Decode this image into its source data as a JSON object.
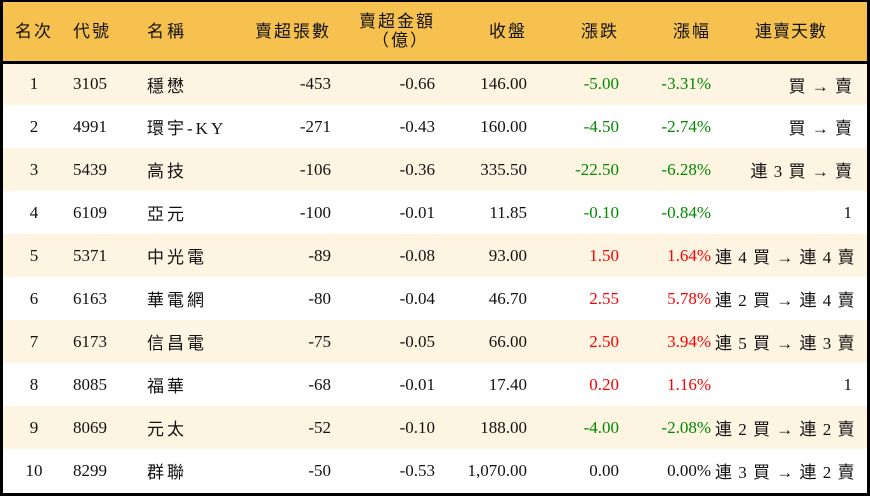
{
  "table": {
    "headers": {
      "rank": "名次",
      "code": "代號",
      "name": "名稱",
      "net_sell_volume": "賣超張數",
      "net_sell_amount_line1": "賣超金額",
      "net_sell_amount_line2": "（億）",
      "close": "收盤",
      "change": "漲跌",
      "change_pct": "漲幅",
      "consecutive_days": "連賣天數"
    },
    "colors": {
      "header_bg": "#F7C150",
      "row_alt_bg": "#FDF4E2",
      "row_bg": "#FFFFFF",
      "up": "#FF0000",
      "down": "#008A00",
      "border": "#000000"
    },
    "rows": [
      {
        "rank": "1",
        "code": "3105",
        "name": "穩懋",
        "volume": "-453",
        "amount": "-0.66",
        "close": "146.00",
        "change": "-5.00",
        "pct": "-3.31%",
        "trend": "down",
        "days": "買 → 賣"
      },
      {
        "rank": "2",
        "code": "4991",
        "name": "環宇-KY",
        "volume": "-271",
        "amount": "-0.43",
        "close": "160.00",
        "change": "-4.50",
        "pct": "-2.74%",
        "trend": "down",
        "days": "買 → 賣"
      },
      {
        "rank": "3",
        "code": "5439",
        "name": "高技",
        "volume": "-106",
        "amount": "-0.36",
        "close": "335.50",
        "change": "-22.50",
        "pct": "-6.28%",
        "trend": "down",
        "days": "連 3 買 → 賣"
      },
      {
        "rank": "4",
        "code": "6109",
        "name": "亞元",
        "volume": "-100",
        "amount": "-0.01",
        "close": "11.85",
        "change": "-0.10",
        "pct": "-0.84%",
        "trend": "down",
        "days": "1"
      },
      {
        "rank": "5",
        "code": "5371",
        "name": "中光電",
        "volume": "-89",
        "amount": "-0.08",
        "close": "93.00",
        "change": "1.50",
        "pct": "1.64%",
        "trend": "up",
        "days": "連 4 買 → 連 4 賣"
      },
      {
        "rank": "6",
        "code": "6163",
        "name": "華電網",
        "volume": "-80",
        "amount": "-0.04",
        "close": "46.70",
        "change": "2.55",
        "pct": "5.78%",
        "trend": "up",
        "days": "連 2 買 → 連 4 賣"
      },
      {
        "rank": "7",
        "code": "6173",
        "name": "信昌電",
        "volume": "-75",
        "amount": "-0.05",
        "close": "66.00",
        "change": "2.50",
        "pct": "3.94%",
        "trend": "up",
        "days": "連 5 買 → 連 3 賣"
      },
      {
        "rank": "8",
        "code": "8085",
        "name": "福華",
        "volume": "-68",
        "amount": "-0.01",
        "close": "17.40",
        "change": "0.20",
        "pct": "1.16%",
        "trend": "up",
        "days": "1"
      },
      {
        "rank": "9",
        "code": "8069",
        "name": "元太",
        "volume": "-52",
        "amount": "-0.10",
        "close": "188.00",
        "change": "-4.00",
        "pct": "-2.08%",
        "trend": "down",
        "days": "連 2 買 → 連 2 賣"
      },
      {
        "rank": "10",
        "code": "8299",
        "name": "群聯",
        "volume": "-50",
        "amount": "-0.53",
        "close": "1,070.00",
        "change": "0.00",
        "pct": "0.00%",
        "trend": "flat",
        "days": "連 3 買 → 連 2 賣"
      }
    ]
  }
}
